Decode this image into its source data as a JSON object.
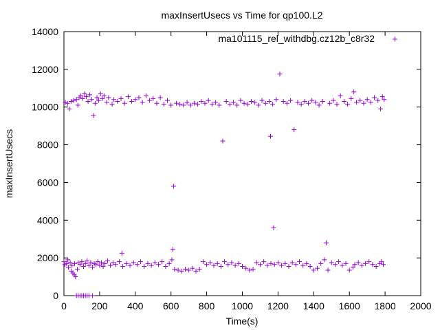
{
  "chart_data": {
    "type": "scatter",
    "title": "maxInsertUsecs vs Time for qp100.L2",
    "xlabel": "Time(s)",
    "ylabel": "maxInsertUsecs",
    "xlim": [
      0,
      2000
    ],
    "ylim": [
      0,
      14000
    ],
    "x_ticks": [
      "0",
      "200",
      "400",
      "600",
      "800",
      "1000",
      "1200",
      "1400",
      "1600",
      "1800",
      "2000"
    ],
    "y_ticks": [
      "0",
      "2000",
      "4000",
      "6000",
      "8000",
      "10000",
      "12000",
      "14000"
    ],
    "grid": false,
    "legend_position": "top-right",
    "marker": "+",
    "series": [
      {
        "name": "ma101115_rel_withdbg.cz12b_c8r32",
        "color": "#9400d3",
        "points": [
          [
            0,
            1800
          ],
          [
            5,
            1650
          ],
          [
            8,
            10250
          ],
          [
            15,
            1700
          ],
          [
            20,
            10200
          ],
          [
            22,
            1900
          ],
          [
            25,
            1500
          ],
          [
            30,
            9900
          ],
          [
            35,
            1750
          ],
          [
            40,
            10300
          ],
          [
            42,
            1300
          ],
          [
            45,
            1600
          ],
          [
            50,
            1200
          ],
          [
            55,
            10350
          ],
          [
            58,
            1100
          ],
          [
            60,
            1700
          ],
          [
            65,
            1000
          ],
          [
            70,
            10400
          ],
          [
            75,
            1400
          ],
          [
            78,
            10100
          ],
          [
            80,
            1750
          ],
          [
            85,
            10500
          ],
          [
            90,
            1650
          ],
          [
            95,
            10600
          ],
          [
            100,
            1800
          ],
          [
            105,
            10450
          ],
          [
            110,
            1550
          ],
          [
            115,
            10700
          ],
          [
            120,
            1700
          ],
          [
            125,
            10550
          ],
          [
            130,
            1850
          ],
          [
            135,
            10300
          ],
          [
            140,
            1600
          ],
          [
            145,
            10650
          ],
          [
            150,
            1750
          ],
          [
            155,
            10400
          ],
          [
            160,
            1500
          ],
          [
            165,
            9550
          ],
          [
            170,
            1700
          ],
          [
            175,
            10200
          ],
          [
            180,
            1650
          ],
          [
            185,
            10500
          ],
          [
            190,
            1800
          ],
          [
            195,
            10350
          ],
          [
            200,
            1600
          ],
          [
            205,
            10700
          ],
          [
            210,
            1750
          ],
          [
            215,
            10450
          ],
          [
            220,
            1550
          ],
          [
            225,
            10600
          ],
          [
            230,
            1700
          ],
          [
            240,
            10250
          ],
          [
            245,
            1850
          ],
          [
            250,
            10500
          ],
          [
            260,
            1600
          ],
          [
            270,
            10150
          ],
          [
            275,
            1750
          ],
          [
            280,
            10400
          ],
          [
            290,
            1650
          ],
          [
            300,
            10300
          ],
          [
            310,
            1800
          ],
          [
            320,
            10450
          ],
          [
            325,
            2250
          ],
          [
            330,
            1550
          ],
          [
            340,
            10200
          ],
          [
            350,
            1700
          ],
          [
            360,
            10550
          ],
          [
            370,
            1600
          ],
          [
            380,
            10300
          ],
          [
            390,
            1750
          ],
          [
            400,
            10400
          ],
          [
            410,
            1650
          ],
          [
            420,
            10500
          ],
          [
            430,
            1800
          ],
          [
            440,
            10250
          ],
          [
            450,
            1550
          ],
          [
            460,
            10600
          ],
          [
            470,
            1700
          ],
          [
            480,
            10350
          ],
          [
            490,
            1600
          ],
          [
            500,
            10450
          ],
          [
            510,
            1750
          ],
          [
            520,
            10200
          ],
          [
            530,
            1650
          ],
          [
            540,
            10500
          ],
          [
            550,
            1800
          ],
          [
            560,
            10150
          ],
          [
            570,
            1550
          ],
          [
            580,
            10350
          ],
          [
            590,
            1700
          ],
          [
            600,
            10100
          ],
          [
            605,
            1900
          ],
          [
            610,
            2450
          ],
          [
            615,
            5800
          ],
          [
            620,
            1400
          ],
          [
            630,
            10200
          ],
          [
            640,
            1350
          ],
          [
            650,
            10150
          ],
          [
            660,
            1300
          ],
          [
            670,
            10100
          ],
          [
            680,
            1400
          ],
          [
            690,
            10250
          ],
          [
            700,
            1350
          ],
          [
            710,
            10100
          ],
          [
            720,
            1450
          ],
          [
            730,
            10200
          ],
          [
            740,
            1300
          ],
          [
            750,
            10150
          ],
          [
            760,
            1400
          ],
          [
            770,
            10300
          ],
          [
            780,
            1800
          ],
          [
            790,
            10200
          ],
          [
            800,
            1650
          ],
          [
            810,
            10350
          ],
          [
            820,
            1750
          ],
          [
            830,
            10150
          ],
          [
            840,
            1600
          ],
          [
            850,
            10250
          ],
          [
            860,
            1700
          ],
          [
            870,
            10100
          ],
          [
            880,
            1550
          ],
          [
            890,
            8200
          ],
          [
            900,
            1800
          ],
          [
            910,
            10300
          ],
          [
            920,
            1650
          ],
          [
            930,
            10150
          ],
          [
            940,
            1750
          ],
          [
            950,
            10250
          ],
          [
            960,
            1600
          ],
          [
            970,
            10100
          ],
          [
            980,
            1700
          ],
          [
            990,
            10350
          ],
          [
            1000,
            1550
          ],
          [
            1010,
            10200
          ],
          [
            1020,
            1450
          ],
          [
            1030,
            10150
          ],
          [
            1040,
            1350
          ],
          [
            1050,
            10300
          ],
          [
            1060,
            1400
          ],
          [
            1070,
            10250
          ],
          [
            1080,
            1750
          ],
          [
            1090,
            10100
          ],
          [
            1100,
            1650
          ],
          [
            1110,
            10350
          ],
          [
            1120,
            1800
          ],
          [
            1130,
            10200
          ],
          [
            1140,
            1600
          ],
          [
            1150,
            10300
          ],
          [
            1158,
            8450
          ],
          [
            1160,
            1700
          ],
          [
            1170,
            10150
          ],
          [
            1175,
            3600
          ],
          [
            1180,
            1650
          ],
          [
            1190,
            10400
          ],
          [
            1200,
            1750
          ],
          [
            1210,
            11750
          ],
          [
            1220,
            1600
          ],
          [
            1230,
            10300
          ],
          [
            1240,
            1700
          ],
          [
            1250,
            10200
          ],
          [
            1260,
            1550
          ],
          [
            1270,
            10350
          ],
          [
            1280,
            1750
          ],
          [
            1290,
            8800
          ],
          [
            1300,
            1650
          ],
          [
            1310,
            10250
          ],
          [
            1320,
            1800
          ],
          [
            1330,
            10150
          ],
          [
            1340,
            1600
          ],
          [
            1350,
            10300
          ],
          [
            1360,
            1700
          ],
          [
            1370,
            10200
          ],
          [
            1380,
            1550
          ],
          [
            1390,
            10350
          ],
          [
            1400,
            1350
          ],
          [
            1410,
            10250
          ],
          [
            1420,
            1450
          ],
          [
            1430,
            10100
          ],
          [
            1440,
            1700
          ],
          [
            1450,
            10300
          ],
          [
            1460,
            1900
          ],
          [
            1470,
            2800
          ],
          [
            1480,
            1350
          ],
          [
            1490,
            10200
          ],
          [
            1500,
            1750
          ],
          [
            1510,
            10350
          ],
          [
            1520,
            1650
          ],
          [
            1530,
            10150
          ],
          [
            1540,
            1800
          ],
          [
            1550,
            10600
          ],
          [
            1560,
            1600
          ],
          [
            1570,
            10300
          ],
          [
            1580,
            1700
          ],
          [
            1590,
            10150
          ],
          [
            1600,
            1350
          ],
          [
            1610,
            10450
          ],
          [
            1620,
            1500
          ],
          [
            1625,
            10800
          ],
          [
            1630,
            1650
          ],
          [
            1640,
            10250
          ],
          [
            1650,
            1750
          ],
          [
            1660,
            10350
          ],
          [
            1670,
            1600
          ],
          [
            1680,
            10200
          ],
          [
            1690,
            1700
          ],
          [
            1700,
            10400
          ],
          [
            1710,
            1800
          ],
          [
            1720,
            10250
          ],
          [
            1730,
            1650
          ],
          [
            1740,
            10500
          ],
          [
            1750,
            1550
          ],
          [
            1760,
            10350
          ],
          [
            1770,
            1700
          ],
          [
            1775,
            9900
          ],
          [
            1780,
            1800
          ],
          [
            1785,
            10550
          ],
          [
            1790,
            1650
          ],
          [
            1795,
            10400
          ]
        ],
        "zero_points": [
          [
            70,
            0
          ],
          [
            80,
            0
          ],
          [
            90,
            0
          ],
          [
            100,
            0
          ],
          [
            110,
            0
          ],
          [
            120,
            0
          ],
          [
            130,
            0
          ],
          [
            140,
            0
          ],
          [
            160,
            0
          ]
        ]
      }
    ]
  }
}
